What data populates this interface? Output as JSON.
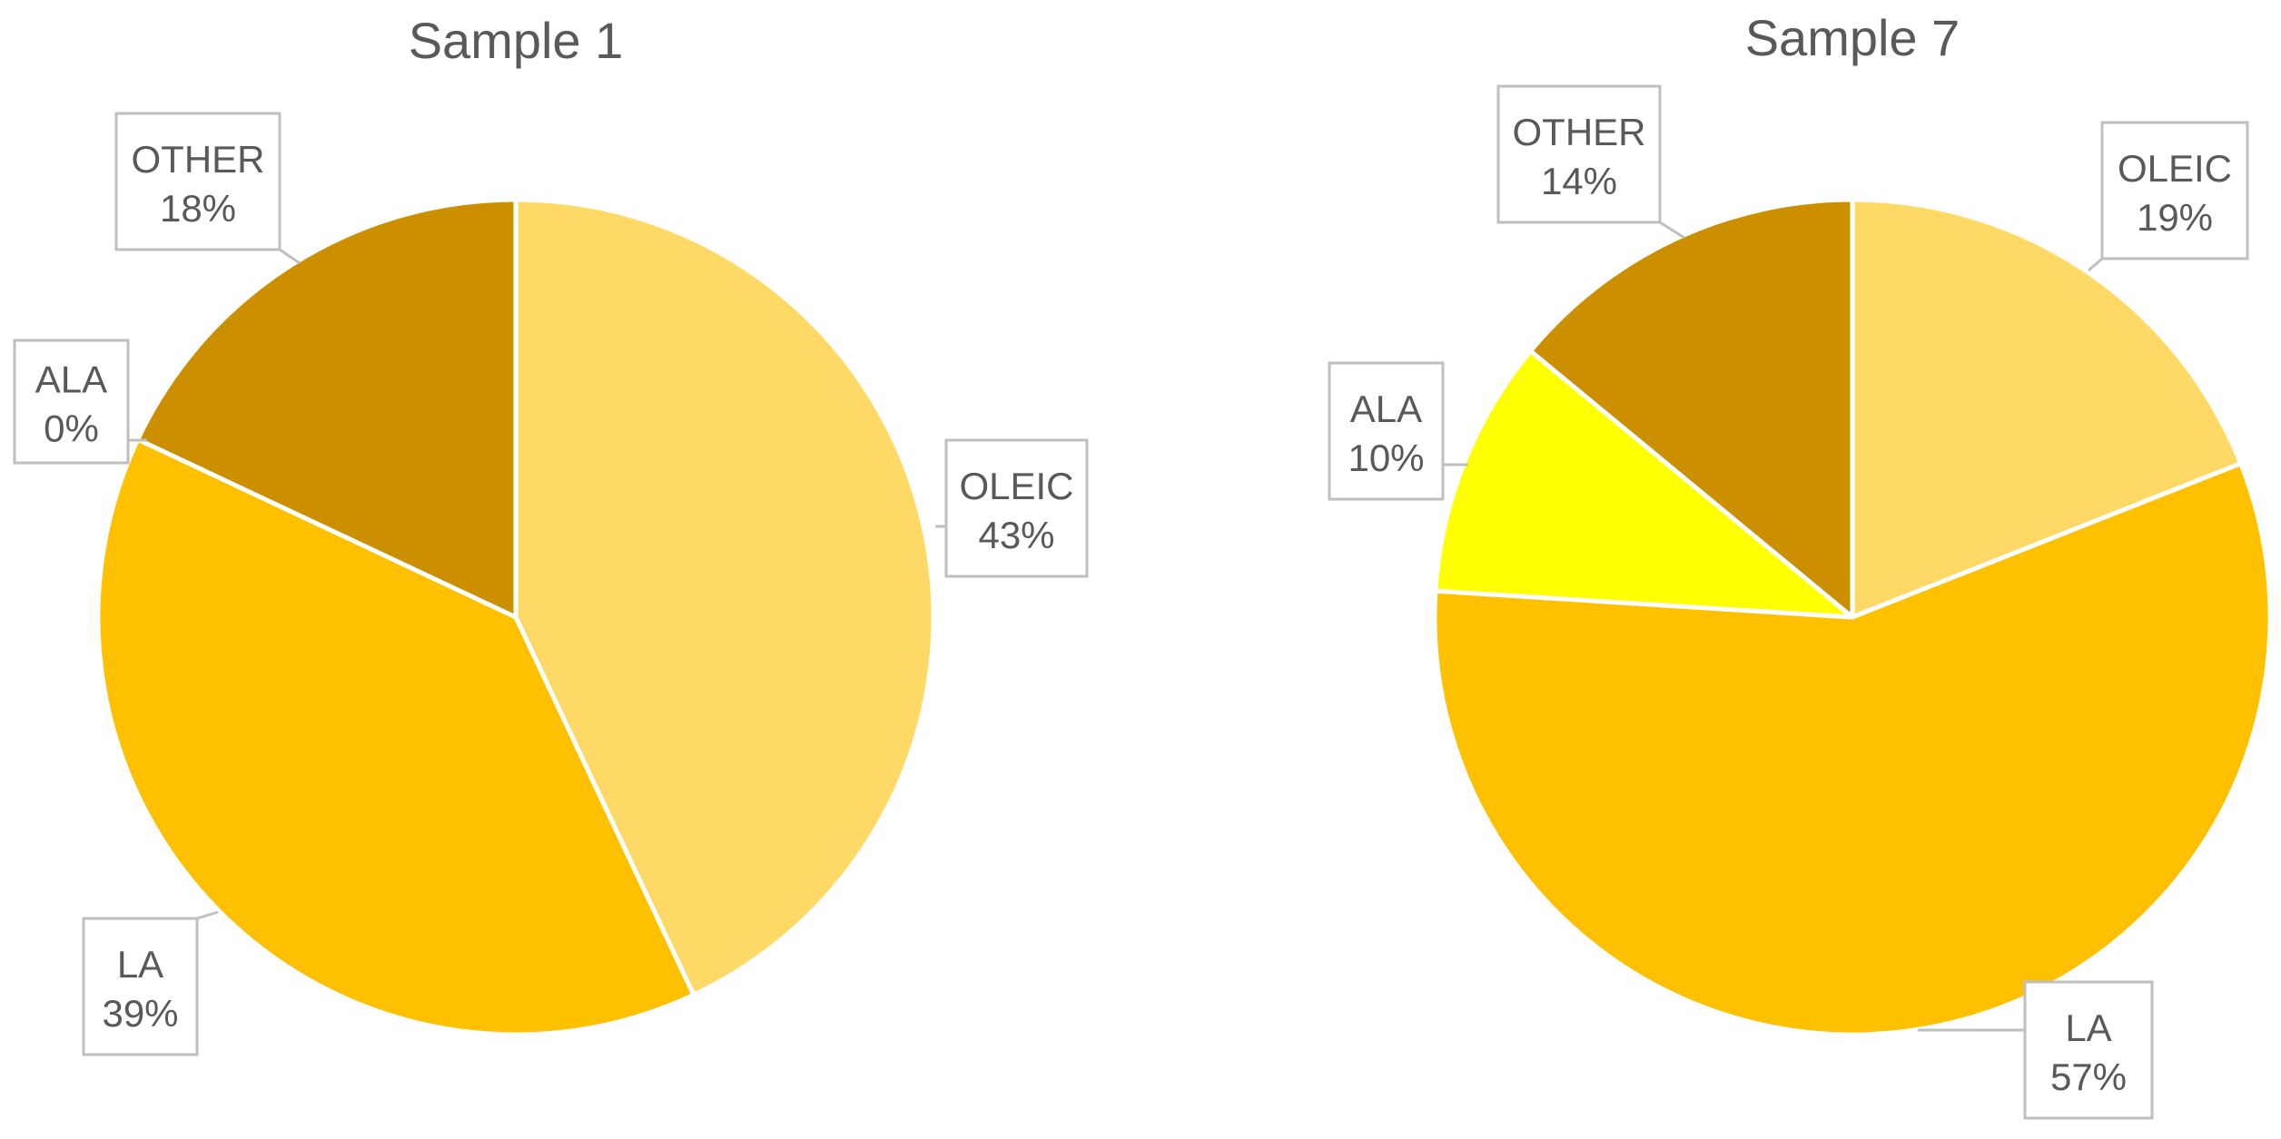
{
  "chart_data": [
    {
      "type": "pie",
      "title": "Sample 1",
      "slices": [
        {
          "label": "OLEIC",
          "value": 43,
          "display": "43%",
          "color": "#FFD966"
        },
        {
          "label": "LA",
          "value": 39,
          "display": "39%",
          "color": "#FFC000"
        },
        {
          "label": "ALA",
          "value": 0,
          "display": "0%",
          "color": "#FFFF00"
        },
        {
          "label": "OTHER",
          "value": 18,
          "display": "18%",
          "color": "#CC8F00"
        }
      ]
    },
    {
      "type": "pie",
      "title": "Sample 7",
      "slices": [
        {
          "label": "OLEIC",
          "value": 19,
          "display": "19%",
          "color": "#FFD966"
        },
        {
          "label": "LA",
          "value": 57,
          "display": "57%",
          "color": "#FFC000"
        },
        {
          "label": "ALA",
          "value": 10,
          "display": "10%",
          "color": "#FFFF00"
        },
        {
          "label": "OTHER",
          "value": 14,
          "display": "14%",
          "color": "#CC8F00"
        }
      ]
    }
  ]
}
